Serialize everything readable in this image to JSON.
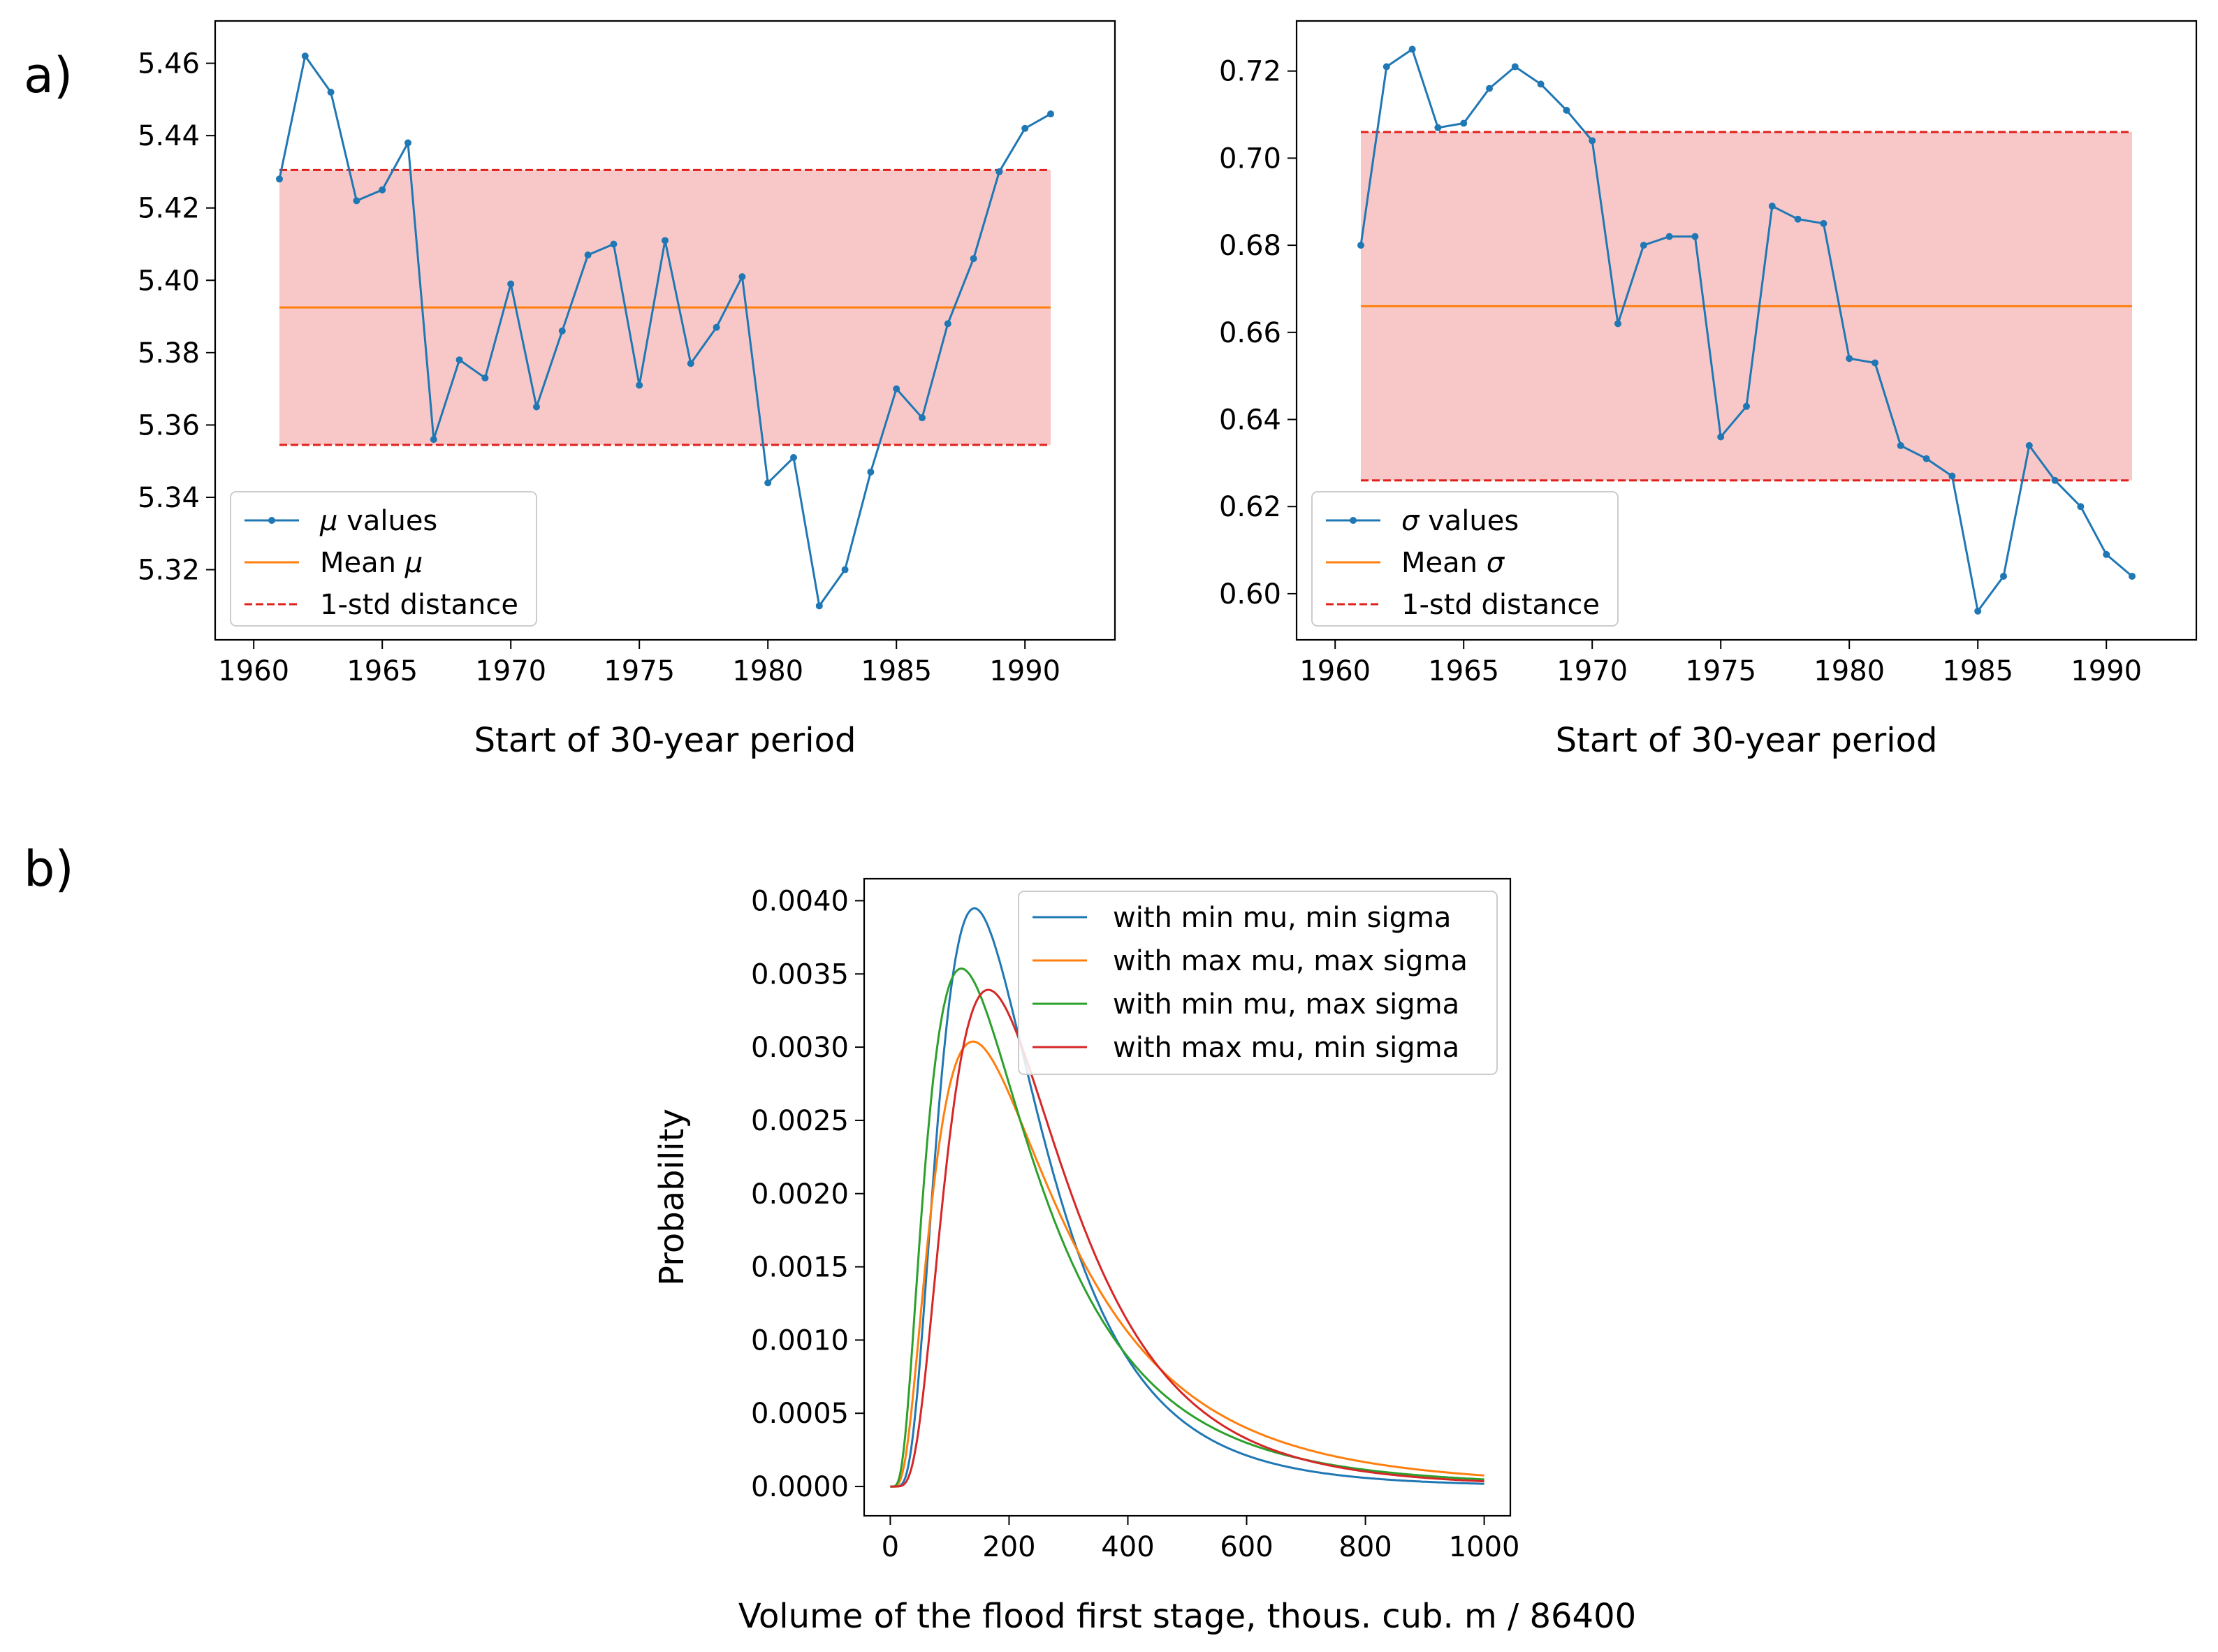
{
  "panel_labels": {
    "a": "a)",
    "b": "b)"
  },
  "colors": {
    "blue": "#1f77b4",
    "orange": "#ff7f0e",
    "green": "#2ca02c",
    "red": "#d62728",
    "band": "#f8c8c8",
    "std_line": "#e0201b"
  },
  "chart_data": [
    {
      "id": "mu",
      "type": "line",
      "title": "",
      "xlabel": "Start of 30-year period",
      "ylabel": "",
      "xlim": [
        1958.5,
        1993.5
      ],
      "ylim": [
        5.3006,
        5.4717
      ],
      "xticks": [
        1960,
        1965,
        1970,
        1975,
        1980,
        1985,
        1990
      ],
      "yticks": [
        5.32,
        5.34,
        5.36,
        5.38,
        5.4,
        5.42,
        5.44,
        5.46
      ],
      "ytick_decimals": 2,
      "x": [
        1961,
        1962,
        1963,
        1964,
        1965,
        1966,
        1967,
        1968,
        1969,
        1970,
        1971,
        1972,
        1973,
        1974,
        1975,
        1976,
        1977,
        1978,
        1979,
        1980,
        1981,
        1982,
        1983,
        1984,
        1985,
        1986,
        1987,
        1988,
        1989,
        1990,
        1991
      ],
      "values": [
        5.428,
        5.462,
        5.452,
        5.422,
        5.425,
        5.438,
        5.356,
        5.378,
        5.373,
        5.399,
        5.365,
        5.386,
        5.407,
        5.41,
        5.371,
        5.411,
        5.377,
        5.387,
        5.401,
        5.344,
        5.351,
        5.31,
        5.32,
        5.347,
        5.37,
        5.362,
        5.388,
        5.406,
        5.43,
        5.442,
        5.446
      ],
      "mean": 5.3925,
      "std_band": [
        5.3545,
        5.4305
      ],
      "legend": {
        "placement": "lower-left",
        "series": "values",
        "mean": "Mean ",
        "std": "1-std distance",
        "symbol": "μ"
      }
    },
    {
      "id": "sigma",
      "type": "line",
      "title": "",
      "xlabel": "Start of 30-year period",
      "ylabel": "",
      "xlim": [
        1958.5,
        1993.5
      ],
      "ylim": [
        0.5894,
        0.7315
      ],
      "xticks": [
        1960,
        1965,
        1970,
        1975,
        1980,
        1985,
        1990
      ],
      "yticks": [
        0.6,
        0.62,
        0.64,
        0.66,
        0.68,
        0.7,
        0.72
      ],
      "ytick_decimals": 2,
      "x": [
        1961,
        1962,
        1963,
        1964,
        1965,
        1966,
        1967,
        1968,
        1969,
        1970,
        1971,
        1972,
        1973,
        1974,
        1975,
        1976,
        1977,
        1978,
        1979,
        1980,
        1981,
        1982,
        1983,
        1984,
        1985,
        1986,
        1987,
        1988,
        1989,
        1990,
        1991
      ],
      "values": [
        0.68,
        0.721,
        0.725,
        0.707,
        0.708,
        0.716,
        0.721,
        0.717,
        0.711,
        0.704,
        0.662,
        0.68,
        0.682,
        0.682,
        0.636,
        0.643,
        0.689,
        0.686,
        0.685,
        0.654,
        0.653,
        0.634,
        0.631,
        0.627,
        0.596,
        0.604,
        0.634,
        0.626,
        0.62,
        0.609,
        0.604
      ],
      "mean": 0.666,
      "std_band": [
        0.626,
        0.706
      ],
      "legend": {
        "placement": "lower-left",
        "series": "values",
        "mean": "Mean ",
        "std": "1-std distance",
        "symbol": "σ"
      }
    },
    {
      "id": "pdf",
      "type": "line",
      "title": "",
      "xlabel": "Volume of the flood first stage, thous. cub. m / 86400",
      "ylabel": "Probability",
      "xlim": [
        -44,
        1044
      ],
      "ylim": [
        -0.0002,
        0.00415
      ],
      "xticks": [
        0,
        200,
        400,
        600,
        800,
        1000
      ],
      "yticks": [
        0.0,
        0.0005,
        0.001,
        0.0015,
        0.002,
        0.0025,
        0.003,
        0.0035,
        0.004
      ],
      "ytick_decimals": 4,
      "distribution": "lognormal",
      "x_range": [
        0,
        1000
      ],
      "series": [
        {
          "name": "with min mu, min sigma",
          "color": "blue",
          "mu": 5.31,
          "sigma": 0.5966
        },
        {
          "name": "with max mu, max sigma",
          "color": "orange",
          "mu": 5.462,
          "sigma": 0.725
        },
        {
          "name": "with min mu, max sigma",
          "color": "green",
          "mu": 5.31,
          "sigma": 0.725
        },
        {
          "name": "with max mu, min sigma",
          "color": "red",
          "mu": 5.462,
          "sigma": 0.5966
        }
      ],
      "legend": {
        "placement": "top-right"
      }
    }
  ]
}
